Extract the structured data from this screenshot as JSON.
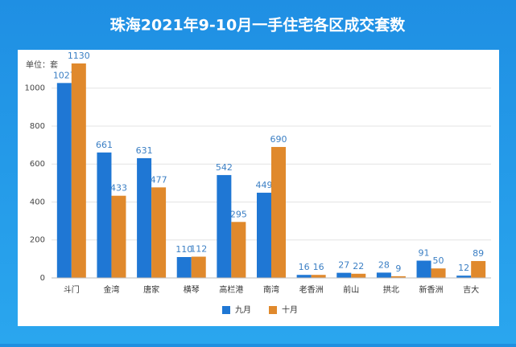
{
  "chart_data": {
    "type": "bar",
    "title": "珠海2021年9-10月一手住宅各区成交套数",
    "unit_label": "单位：套",
    "categories": [
      "斗门",
      "金湾",
      "唐家",
      "横琴",
      "高栏港",
      "南湾",
      "老香洲",
      "前山",
      "拱北",
      "新香洲",
      "吉大"
    ],
    "series": [
      {
        "name": "九月",
        "color": "#1f77d4",
        "values": [
          1027,
          661,
          631,
          110,
          542,
          449,
          16,
          27,
          28,
          91,
          12
        ]
      },
      {
        "name": "十月",
        "color": "#e0892c",
        "values": [
          1130,
          433,
          477,
          112,
          295,
          690,
          16,
          22,
          9,
          50,
          89
        ]
      }
    ],
    "ylim": [
      0,
      1130
    ],
    "yticks": [
      0,
      200,
      400,
      600,
      800,
      1000
    ],
    "grid": true,
    "legend": "bottom"
  }
}
